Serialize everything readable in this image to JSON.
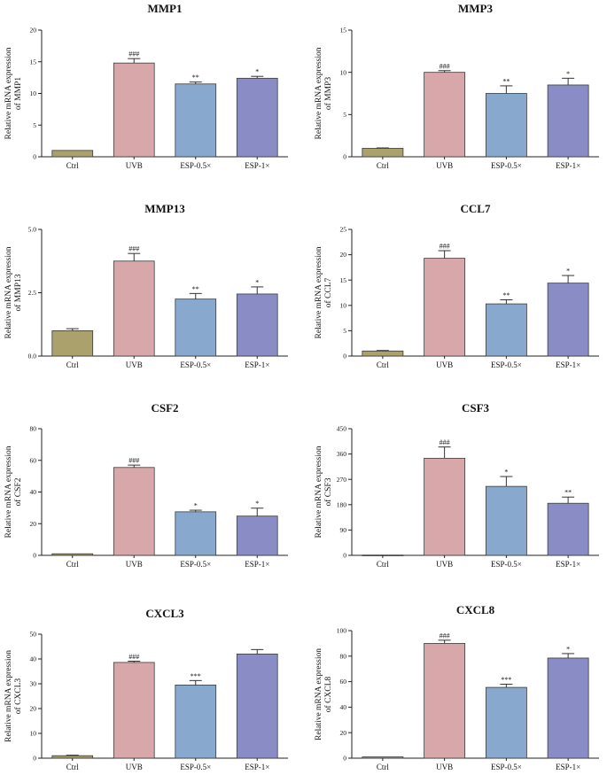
{
  "colors": {
    "Ctrl": "#aba16d",
    "UVB": "#d8a7a9",
    "ESP-0.5×": "#89a8cd",
    "ESP-1×": "#8a8cc6",
    "axis": "#222222",
    "errorbar": "#333333"
  },
  "chart_data": [
    {
      "type": "bar",
      "title": "MMP1",
      "xlabel": "",
      "ylabel": "Relative mRNA expression",
      "ylabel2": "of MMP1",
      "categories": [
        "Ctrl",
        "UVB",
        "ESP-0.5×",
        "ESP-1×"
      ],
      "values": [
        1.0,
        14.8,
        11.5,
        12.4
      ],
      "errors": [
        0.05,
        0.7,
        0.3,
        0.3
      ],
      "significance": [
        "",
        "###",
        "**",
        "*"
      ],
      "ylim": [
        0,
        20
      ],
      "yticks": [
        0,
        5,
        10,
        15,
        20
      ],
      "ytick_labels": [
        "0",
        "5",
        "10",
        "15",
        "20"
      ]
    },
    {
      "type": "bar",
      "title": "MMP3",
      "xlabel": "",
      "ylabel": "Relative mRNA expression",
      "ylabel2": "of MMP3",
      "categories": [
        "Ctrl",
        "UVB",
        "ESP-0.5×",
        "ESP-1×"
      ],
      "values": [
        1.0,
        10.0,
        7.5,
        8.5
      ],
      "errors": [
        0.05,
        0.2,
        0.9,
        0.8
      ],
      "significance": [
        "",
        "###",
        "**",
        "*"
      ],
      "ylim": [
        0,
        15
      ],
      "yticks": [
        0,
        5,
        10,
        15
      ],
      "ytick_labels": [
        "0",
        "5",
        "10",
        "15"
      ]
    },
    {
      "type": "bar",
      "title": "MMP13",
      "xlabel": "",
      "ylabel": "Relative mRNA expression",
      "ylabel2": "of MMP13",
      "categories": [
        "Ctrl",
        "UVB",
        "ESP-0.5×",
        "ESP-1×"
      ],
      "values": [
        1.0,
        3.75,
        2.25,
        2.45
      ],
      "errors": [
        0.08,
        0.3,
        0.22,
        0.28
      ],
      "significance": [
        "",
        "###",
        "**",
        "*"
      ],
      "ylim": [
        0,
        5
      ],
      "yticks": [
        0,
        2.5,
        5
      ],
      "ytick_labels": [
        "0.0",
        "2.5",
        "5.0"
      ]
    },
    {
      "type": "bar",
      "title": "CCL7",
      "xlabel": "",
      "ylabel": "Relative mRNA expression",
      "ylabel2": "of CCL7",
      "categories": [
        "Ctrl",
        "UVB",
        "ESP-0.5×",
        "ESP-1×"
      ],
      "values": [
        1.0,
        19.3,
        10.3,
        14.4
      ],
      "errors": [
        0.1,
        1.5,
        0.8,
        1.5
      ],
      "significance": [
        "",
        "###",
        "**",
        "*"
      ],
      "ylim": [
        0,
        25
      ],
      "yticks": [
        0,
        5,
        10,
        15,
        20,
        25
      ],
      "ytick_labels": [
        "0",
        "5",
        "10",
        "15",
        "20",
        "25"
      ]
    },
    {
      "type": "bar",
      "title": "CSF2",
      "xlabel": "",
      "ylabel": "Relative mRNA expression",
      "ylabel2": "of CSF2",
      "categories": [
        "Ctrl",
        "UVB",
        "ESP-0.5×",
        "ESP-1×"
      ],
      "values": [
        1.0,
        55.5,
        27.5,
        24.8
      ],
      "errors": [
        0.2,
        1.5,
        1.0,
        5.0
      ],
      "significance": [
        "",
        "###",
        "*",
        "*"
      ],
      "ylim": [
        0,
        80
      ],
      "yticks": [
        0,
        20,
        40,
        60,
        80
      ],
      "ytick_labels": [
        "0",
        "20",
        "40",
        "60",
        "80"
      ]
    },
    {
      "type": "bar",
      "title": "CSF3",
      "xlabel": "",
      "ylabel": "Relative mRNA expression",
      "ylabel2": "of CSF3",
      "categories": [
        "Ctrl",
        "UVB",
        "ESP-0.5×",
        "ESP-1×"
      ],
      "values": [
        1.0,
        345,
        245,
        185
      ],
      "errors": [
        0.2,
        40,
        35,
        22
      ],
      "significance": [
        "",
        "###",
        "*",
        "**"
      ],
      "ylim": [
        0,
        450
      ],
      "yticks": [
        0,
        90,
        180,
        270,
        360,
        450
      ],
      "ytick_labels": [
        "0",
        "90",
        "180",
        "270",
        "360",
        "450"
      ]
    },
    {
      "type": "bar",
      "title": "CXCL3",
      "xlabel": "",
      "ylabel": "Relative mRNA expression",
      "ylabel2": "of CXCL3",
      "categories": [
        "Ctrl",
        "UVB",
        "ESP-0.5×",
        "ESP-1×"
      ],
      "values": [
        1.0,
        38.6,
        29.5,
        42.0
      ],
      "errors": [
        0.2,
        0.5,
        1.8,
        1.8
      ],
      "significance": [
        "",
        "###",
        "***",
        ""
      ],
      "ylim": [
        0,
        50
      ],
      "yticks": [
        0,
        10,
        20,
        30,
        40,
        50
      ],
      "ytick_labels": [
        "0",
        "10",
        "20",
        "30",
        "40",
        "50"
      ]
    },
    {
      "type": "bar",
      "title": "CXCL8",
      "xlabel": "",
      "ylabel": "Relative mRNA expression",
      "ylabel2": "of CXCL8",
      "categories": [
        "Ctrl",
        "UVB",
        "ESP-0.5×",
        "ESP-1×"
      ],
      "values": [
        1.0,
        90.0,
        55.5,
        78.5
      ],
      "errors": [
        0.2,
        2.5,
        2.5,
        3.5
      ],
      "significance": [
        "",
        "###",
        "***",
        "*"
      ],
      "ylim": [
        0,
        100
      ],
      "yticks": [
        0,
        20,
        40,
        60,
        80,
        100
      ],
      "ytick_labels": [
        "0",
        "20",
        "40",
        "60",
        "80",
        "100"
      ]
    }
  ]
}
